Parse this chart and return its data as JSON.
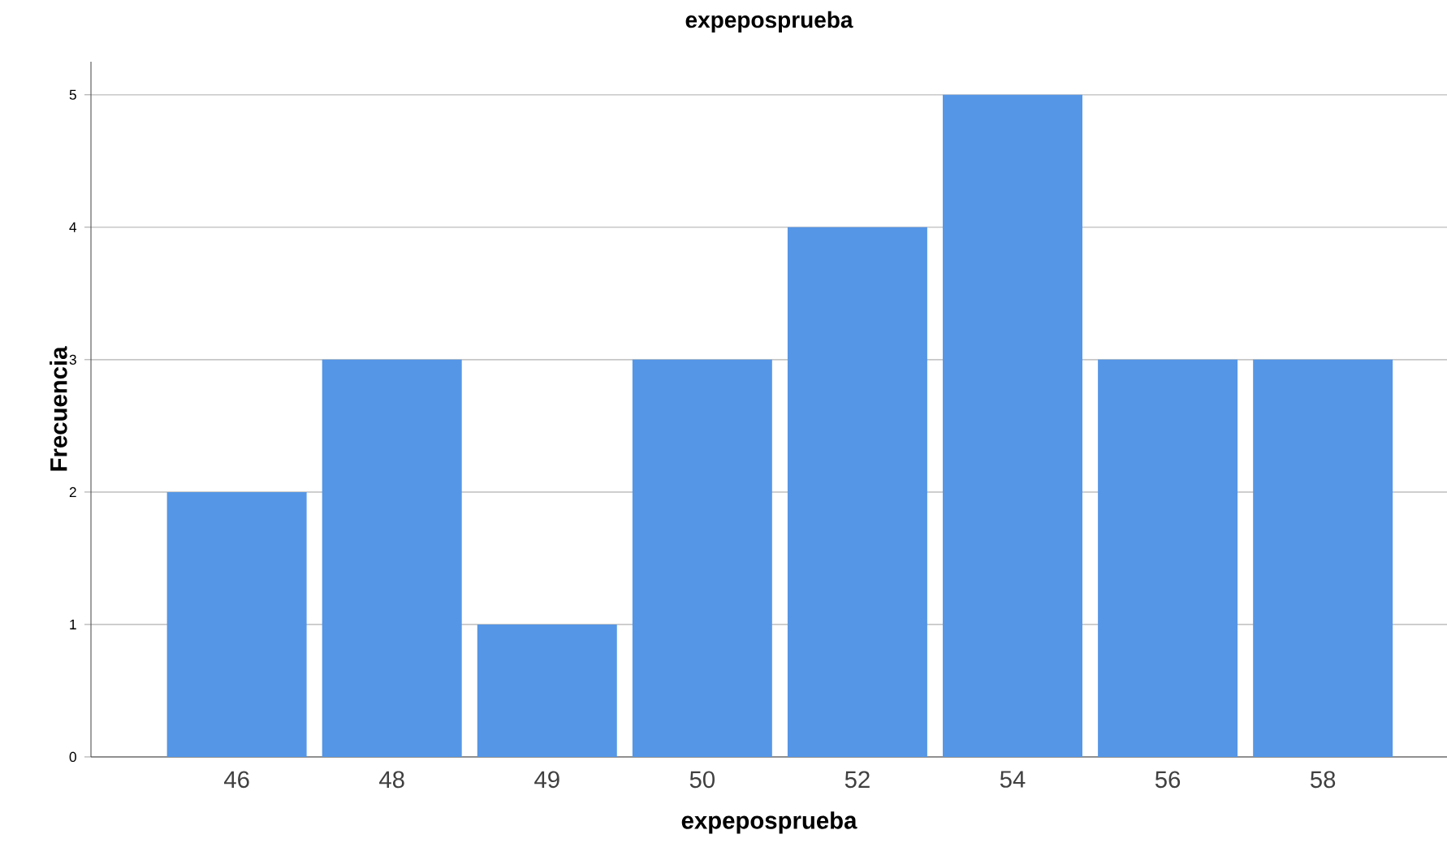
{
  "chart_data": {
    "type": "bar",
    "title": "expeposprueba",
    "xlabel": "expeposprueba",
    "ylabel": "Frecuencia",
    "categories": [
      "46",
      "48",
      "49",
      "50",
      "52",
      "54",
      "56",
      "58"
    ],
    "values": [
      2,
      3,
      1,
      3,
      4,
      5,
      3,
      3
    ],
    "color": "#5596e6",
    "ylim": [
      0,
      5.25
    ],
    "yticks": [
      0,
      1,
      2,
      3,
      4,
      5
    ],
    "grid": "y"
  }
}
